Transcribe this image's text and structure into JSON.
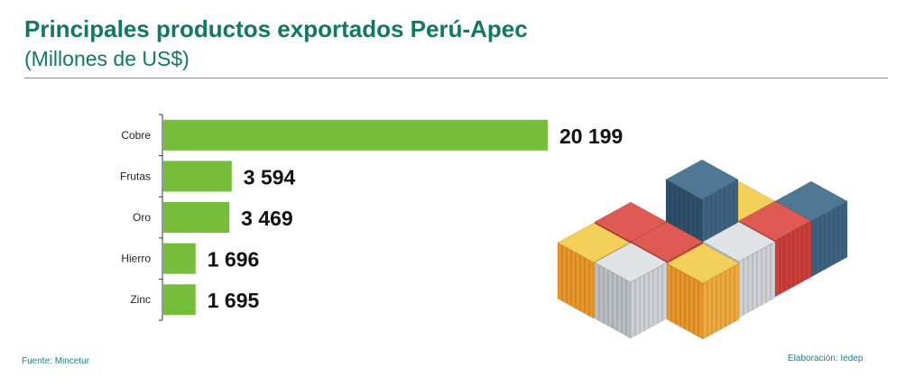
{
  "header": {
    "title": "Principales productos exportados Perú-Apec",
    "subtitle": "(Millones de US$)"
  },
  "footer": {
    "source": "Fuente: Mincetur",
    "credit": "Elaboración: Iedep"
  },
  "colors": {
    "title": "#0f7a5f",
    "bar": "#76bd3a",
    "axis": "#333333",
    "footer_text": "#1a7d8a"
  },
  "illustration": "shipping-containers-stack",
  "chart_data": {
    "type": "bar",
    "orientation": "horizontal",
    "title": "Principales productos exportados Perú-Apec",
    "subtitle": "(Millones de US$)",
    "categories": [
      "Cobre",
      "Frutas",
      "Oro",
      "Hierro",
      "Zinc"
    ],
    "values": [
      20199,
      3594,
      3469,
      1696,
      1695
    ],
    "value_labels": [
      "20 199",
      "3 594",
      "3 469",
      "1 696",
      "1 695"
    ],
    "xlim": [
      0,
      20199
    ],
    "grid": false,
    "legend": "none"
  }
}
